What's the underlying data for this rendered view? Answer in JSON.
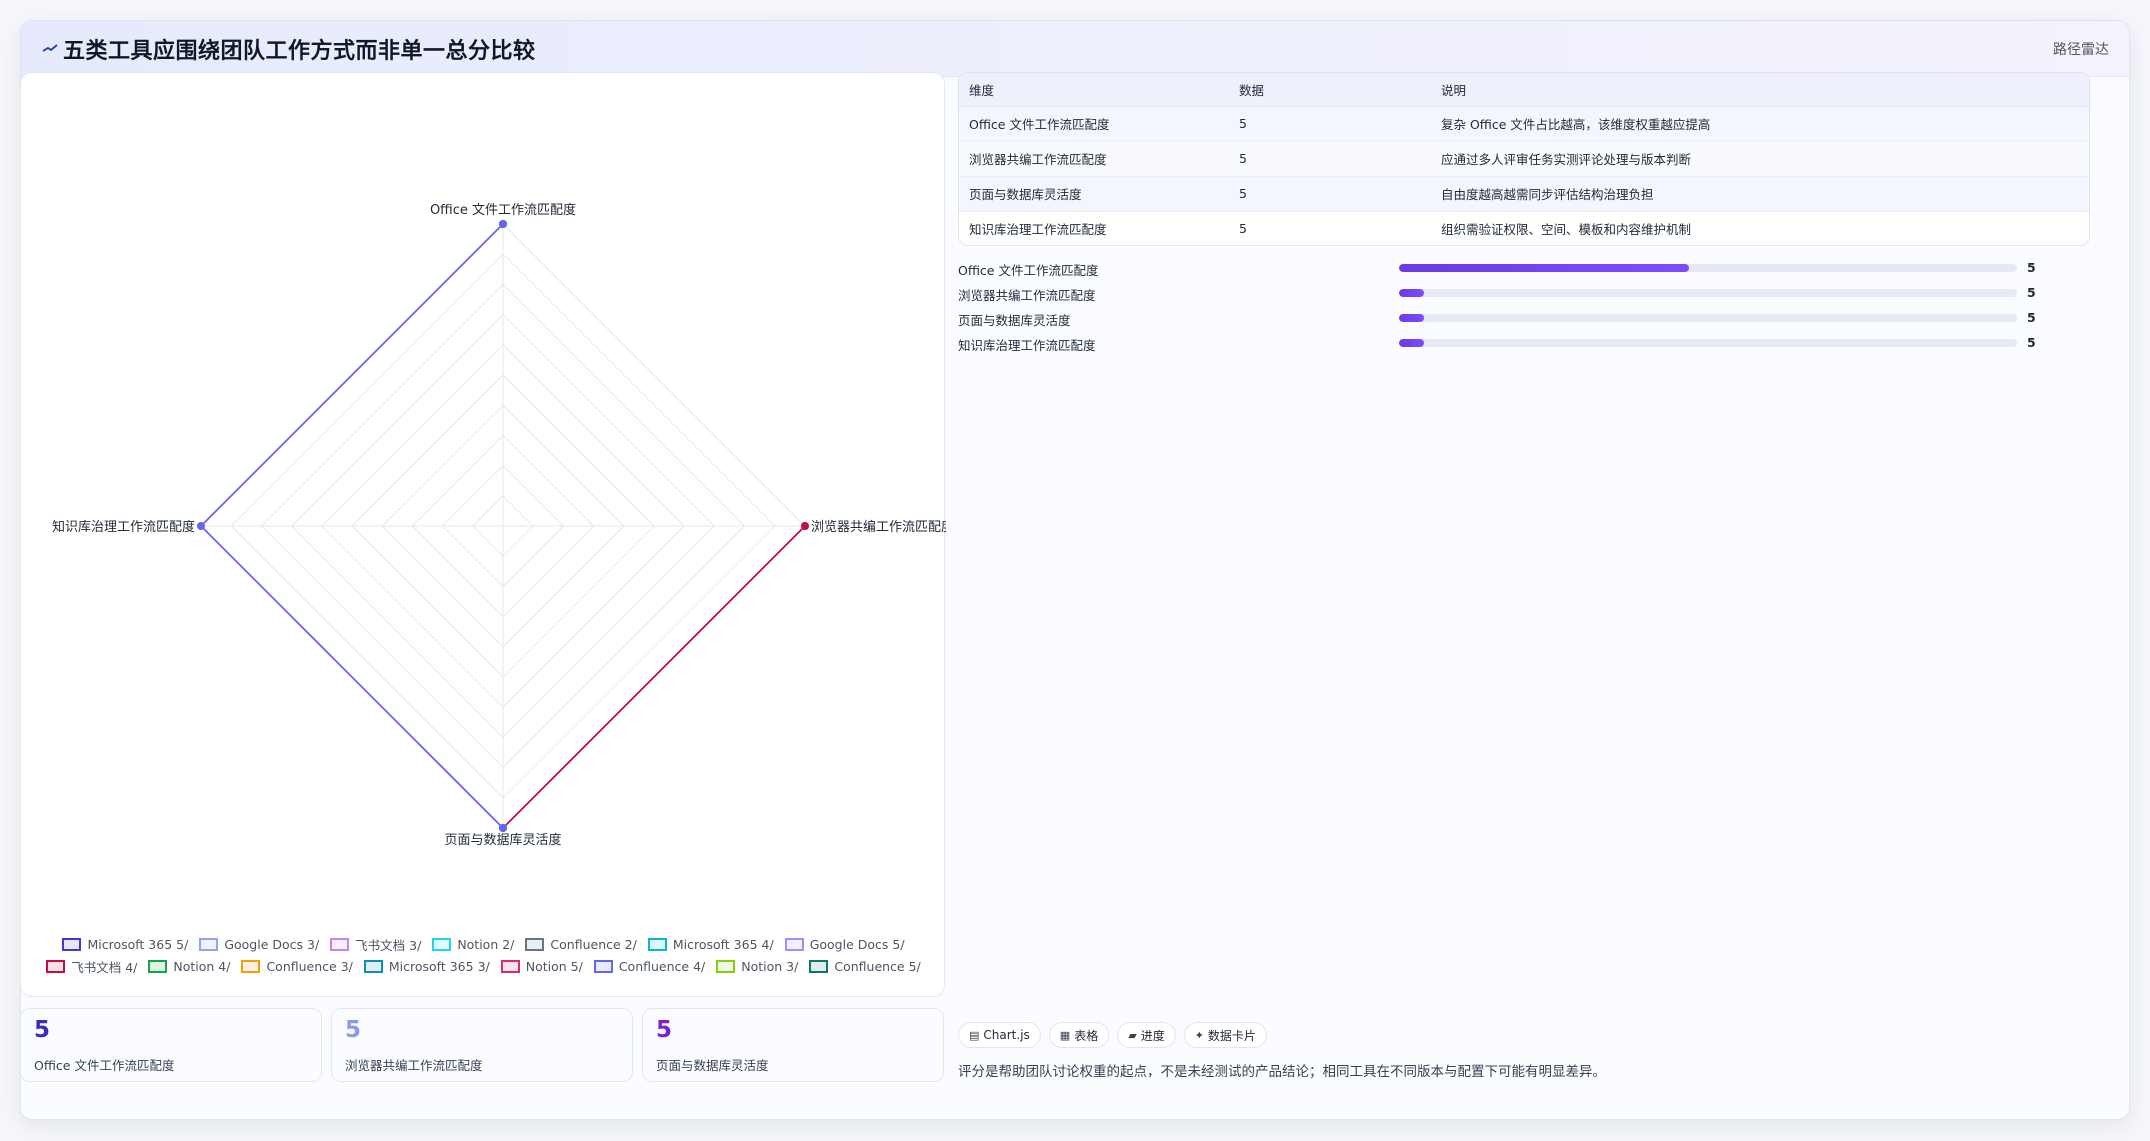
{
  "window": {
    "title": "五类工具应围绕团队工作方式而非单一总分比较",
    "right_label": "路径雷达"
  },
  "chart_data": {
    "type": "radar",
    "title": "",
    "axes": [
      "Office 文件工作流匹配度",
      "浏览器共编工作流匹配度",
      "页面与数据库灵活度",
      "知识库治理工作流匹配度"
    ],
    "r_range": [
      0,
      5
    ],
    "grid": true,
    "legend_position": "bottom",
    "series": [
      {
        "name": "Microsoft 365 5/",
        "values": [
          5,
          0,
          0,
          0
        ],
        "color": "#4338ca"
      },
      {
        "name": "Google Docs 3/",
        "values": [
          0,
          0,
          0,
          0
        ],
        "color": "#93a4e8"
      },
      {
        "name": "飞书文档 3/",
        "values": [
          0,
          0,
          0,
          0
        ],
        "color": "#c084fc"
      },
      {
        "name": "Notion 2/",
        "values": [
          0,
          0,
          0,
          0
        ],
        "color": "#22d3ee"
      },
      {
        "name": "Confluence 2/",
        "values": [
          0,
          0,
          0,
          0
        ],
        "color": "#64748b"
      },
      {
        "name": "Microsoft 365 4/",
        "values": [
          0,
          5,
          0,
          0
        ],
        "color": "#06b6d4"
      },
      {
        "name": "Google Docs 5/",
        "values": [
          0,
          0,
          0,
          0
        ],
        "color": "#a78bfa"
      },
      {
        "name": "飞书文档 4/",
        "values": [
          0,
          5,
          5,
          0
        ],
        "color": "#be123c"
      },
      {
        "name": "Notion 4/",
        "values": [
          0,
          0,
          0,
          0
        ],
        "color": "#16a34a"
      },
      {
        "name": "Confluence 3/",
        "values": [
          0,
          0,
          0,
          0
        ],
        "color": "#f59e0b"
      },
      {
        "name": "Microsoft 365 3/",
        "values": [
          0,
          0,
          0,
          0
        ],
        "color": "#0891b2"
      },
      {
        "name": "Notion 5/",
        "values": [
          0,
          0,
          0,
          0
        ],
        "color": "#db2777"
      },
      {
        "name": "Confluence 4/",
        "values": [
          5,
          0,
          5,
          5
        ],
        "color": "#6366f1"
      },
      {
        "name": "Notion 3/",
        "values": [
          0,
          0,
          0,
          0
        ],
        "color": "#84cc16"
      },
      {
        "name": "Confluence 5/",
        "values": [
          0,
          0,
          0,
          0
        ],
        "color": "#0f766e"
      }
    ]
  },
  "table": {
    "headers": [
      "维度",
      "数据",
      "说明"
    ],
    "rows": [
      [
        "Office 文件工作流匹配度",
        "5",
        "复杂 Office 文件占比越高，该维度权重越应提高"
      ],
      [
        "浏览器共编工作流匹配度",
        "5",
        "应通过多人评审任务实测评论处理与版本判断"
      ],
      [
        "页面与数据库灵活度",
        "5",
        "自由度越高越需同步评估结构治理负担"
      ],
      [
        "知识库治理工作流匹配度",
        "5",
        "组织需验证权限、空间、模板和内容维护机制"
      ]
    ]
  },
  "bars": [
    {
      "label": "Office 文件工作流匹配度",
      "value": "5",
      "fill": 0.47
    },
    {
      "label": "浏览器共编工作流匹配度",
      "value": "5",
      "fill": 0.04
    },
    {
      "label": "页面与数据库灵活度",
      "value": "5",
      "fill": 0.04
    },
    {
      "label": "知识库治理工作流匹配度",
      "value": "5",
      "fill": 0.04
    }
  ],
  "kpis": [
    {
      "value": "5",
      "label": "Office 文件工作流匹配度",
      "color": "#3b2bb8"
    },
    {
      "value": "5",
      "label": "浏览器共编工作流匹配度",
      "color": "#8a9be8"
    },
    {
      "value": "5",
      "label": "页面与数据库灵活度",
      "color": "#7e22ce"
    }
  ],
  "tags": [
    {
      "icon": "▤",
      "label": "Chart.js",
      "icon_name": "chart-icon"
    },
    {
      "icon": "▦",
      "label": "表格",
      "icon_name": "table-icon"
    },
    {
      "icon": "▰",
      "label": "进度",
      "icon_name": "progress-icon"
    },
    {
      "icon": "✦",
      "label": "数据卡片",
      "icon_name": "sparkle-icon"
    }
  ],
  "footnote": "评分是帮助团队讨论权重的起点，不是未经测试的产品结论；相同工具在不同版本与配置下可能有明显差异。"
}
